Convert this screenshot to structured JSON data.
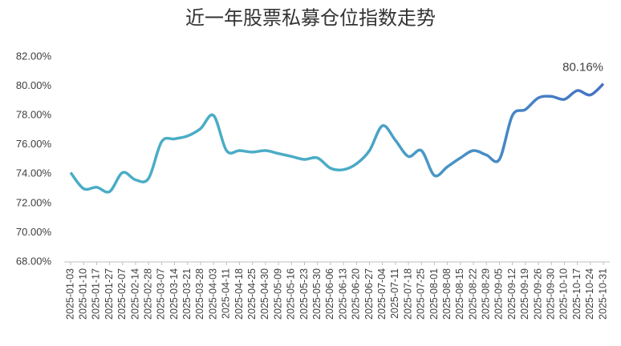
{
  "chart_data": {
    "type": "line",
    "title": "近一年股票私募仓位指数走势",
    "categories": [
      "2025-01-03",
      "2025-01-10",
      "2025-01-17",
      "2025-01-27",
      "2025-02-07",
      "2025-02-14",
      "2025-02-28",
      "2025-03-07",
      "2025-03-14",
      "2025-03-21",
      "2025-03-28",
      "2025-04-03",
      "2025-04-11",
      "2025-04-18",
      "2025-04-25",
      "2025-04-30",
      "2025-05-09",
      "2025-05-16",
      "2025-05-23",
      "2025-05-30",
      "2025-06-06",
      "2025-06-13",
      "2025-06-20",
      "2025-06-27",
      "2025-07-04",
      "2025-07-11",
      "2025-07-18",
      "2025-07-25",
      "2025-08-01",
      "2025-08-08",
      "2025-08-15",
      "2025-08-22",
      "2025-08-29",
      "2025-09-05",
      "2025-09-12",
      "2025-09-19",
      "2025-09-26",
      "2025-09-30",
      "2025-10-10",
      "2025-10-17",
      "2025-10-24",
      "2025-10-31"
    ],
    "series": [
      {
        "colors": [
          "#4bacc6",
          "#4472c4"
        ],
        "values": [
          74.1,
          73.0,
          73.1,
          72.8,
          74.1,
          73.6,
          73.7,
          76.2,
          76.4,
          76.6,
          77.1,
          78.0,
          75.6,
          75.6,
          75.5,
          75.6,
          75.4,
          75.2,
          75.0,
          75.1,
          74.4,
          74.3,
          74.7,
          75.6,
          77.3,
          76.3,
          75.2,
          75.6,
          73.9,
          74.5,
          75.1,
          75.6,
          75.3,
          75.0,
          78.0,
          78.4,
          79.2,
          79.3,
          79.1,
          79.7,
          79.4,
          80.16
        ],
        "value_labels": [
          null,
          null,
          null,
          null,
          null,
          null,
          null,
          null,
          null,
          null,
          null,
          null,
          null,
          null,
          null,
          null,
          null,
          null,
          null,
          null,
          null,
          null,
          null,
          null,
          null,
          null,
          null,
          null,
          null,
          null,
          null,
          null,
          null,
          null,
          null,
          null,
          null,
          null,
          null,
          null,
          null,
          "80.16%"
        ]
      }
    ],
    "ylim": [
      68,
      82
    ],
    "yticks": [
      {
        "value": 68,
        "label": "68.00%"
      },
      {
        "value": 70,
        "label": "70.00%"
      },
      {
        "value": 72,
        "label": "72.00%"
      },
      {
        "value": 74,
        "label": "74.00%"
      },
      {
        "value": 76,
        "label": "76.00%"
      },
      {
        "value": 78,
        "label": "78.00%"
      },
      {
        "value": 80,
        "label": "80.00%"
      },
      {
        "value": 82,
        "label": "82.00%"
      }
    ],
    "grid": false
  }
}
